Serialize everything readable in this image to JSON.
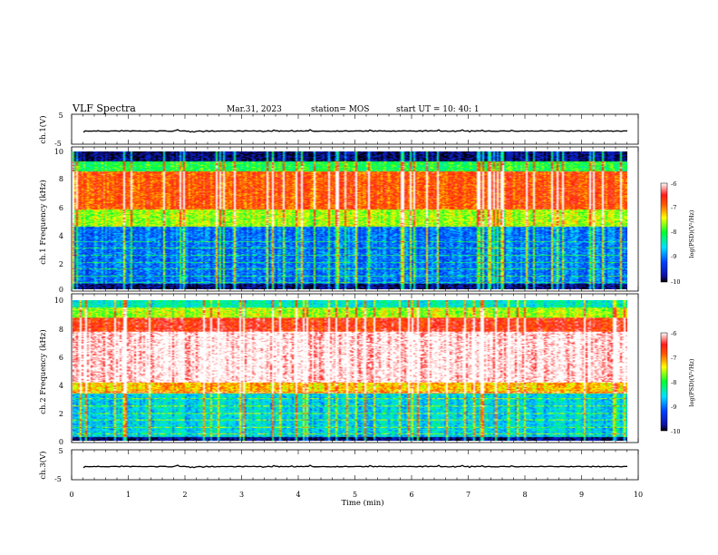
{
  "header": {
    "title": "VLF Spectra",
    "date": "Mar.31, 2023",
    "station": "station= MOS",
    "start": "start UT =  10: 40: 1"
  },
  "chart_data": [
    {
      "type": "line",
      "name": "ch1-waveform",
      "ylabel": "ch.1(V)",
      "yticks": [
        "5",
        "-5"
      ],
      "ylim": [
        -5,
        5
      ],
      "xlim": [
        0,
        10
      ],
      "trace_level": 0
    },
    {
      "type": "heatmap",
      "name": "ch1-spectrogram",
      "ylabel": "ch.1 Frequency (kHz)",
      "ylim": [
        0,
        10
      ],
      "yticks": [
        "0",
        "2",
        "4",
        "6",
        "8",
        "10"
      ],
      "xlim": [
        0,
        9.85
      ],
      "colorbar": {
        "label": "log(PSD)(V²/Hz)",
        "range": [
          -10,
          -6
        ],
        "ticks": [
          "-6",
          "-7",
          "-8",
          "-9",
          "-10"
        ]
      },
      "bands": [
        {
          "f": [
            0,
            0.4
          ],
          "level": -9.8
        },
        {
          "f": [
            0.4,
            4.6
          ],
          "level": -9.0
        },
        {
          "f": [
            4.6,
            5.8
          ],
          "level": -7.6
        },
        {
          "f": [
            5.8,
            8.6
          ],
          "level": -6.8
        },
        {
          "f": [
            8.6,
            9.3
          ],
          "level": -8.0
        },
        {
          "f": [
            9.3,
            10
          ],
          "level": -9.8
        }
      ]
    },
    {
      "type": "heatmap",
      "name": "ch2-spectrogram",
      "ylabel": "ch.2 Frequency (kHz)",
      "ylim": [
        0,
        10
      ],
      "yticks": [
        "0",
        "2",
        "4",
        "6",
        "8",
        "10"
      ],
      "xlim": [
        0,
        9.85
      ],
      "colorbar": {
        "label": "log(PSD)(V²/Hz)",
        "range": [
          -10,
          -6
        ],
        "ticks": [
          "-6",
          "-7",
          "-8",
          "-9",
          "-10"
        ]
      },
      "bands": [
        {
          "f": [
            0,
            0.3
          ],
          "level": -9.8
        },
        {
          "f": [
            0.3,
            3.4
          ],
          "level": -8.6
        },
        {
          "f": [
            3.4,
            4.2
          ],
          "level": -7.2
        },
        {
          "f": [
            4.2,
            7.8
          ],
          "level": -6.0
        },
        {
          "f": [
            7.8,
            8.8
          ],
          "level": -6.6
        },
        {
          "f": [
            8.8,
            9.5
          ],
          "level": -7.6
        },
        {
          "f": [
            9.5,
            10
          ],
          "level": -8.4
        }
      ]
    },
    {
      "type": "line",
      "name": "ch3-waveform",
      "ylabel": "ch.3(V)",
      "yticks": [
        "5",
        "-5"
      ],
      "ylim": [
        -5,
        5
      ],
      "xlim": [
        0,
        10
      ],
      "trace_level": 0
    }
  ],
  "xaxis": {
    "label": "Time (min)",
    "ticks": [
      "0",
      "1",
      "2",
      "3",
      "4",
      "5",
      "6",
      "7",
      "8",
      "9",
      "10"
    ],
    "range": [
      0,
      10
    ]
  }
}
